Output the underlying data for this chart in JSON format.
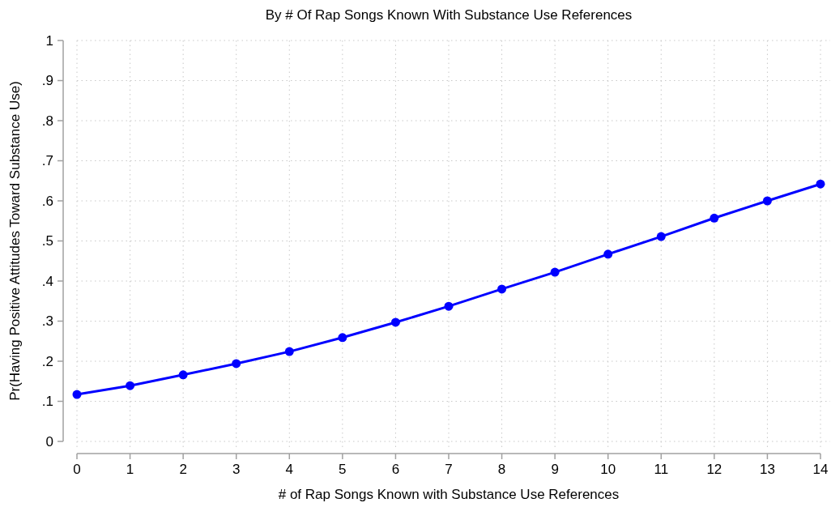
{
  "chart_data": {
    "type": "line",
    "title": "By # Of Rap Songs Known With Substance Use References",
    "xlabel": "# of Rap Songs Known with Substance Use References",
    "ylabel": "Pr(Having Positive Attitudes Toward Substance Use)",
    "x": [
      0,
      1,
      2,
      3,
      4,
      5,
      6,
      7,
      8,
      9,
      10,
      11,
      12,
      13,
      14
    ],
    "series": [
      {
        "color": "#0000ff",
        "values": [
          0.117,
          0.139,
          0.166,
          0.194,
          0.224,
          0.259,
          0.297,
          0.337,
          0.38,
          0.422,
          0.467,
          0.511,
          0.557,
          0.6,
          0.642
        ]
      }
    ],
    "xlim": [
      0,
      14
    ],
    "xticks": [
      0,
      1,
      2,
      3,
      4,
      5,
      6,
      7,
      8,
      9,
      10,
      11,
      12,
      13,
      14
    ],
    "ylim": [
      0,
      1
    ],
    "yticks": [
      0,
      {
        "value": 0.1,
        "label": ".1"
      },
      {
        "value": 0.2,
        "label": ".2"
      },
      {
        "value": 0.3,
        "label": ".3"
      },
      {
        "value": 0.4,
        "label": ".4"
      },
      {
        "value": 0.5,
        "label": ".5"
      },
      {
        "value": 0.6,
        "label": ".6"
      },
      {
        "value": 0.7,
        "label": ".7"
      },
      {
        "value": 0.8,
        "label": ".8"
      },
      {
        "value": 0.9,
        "label": ".9"
      },
      1
    ],
    "grid": true,
    "marker": "circle",
    "line_style": "solid"
  }
}
